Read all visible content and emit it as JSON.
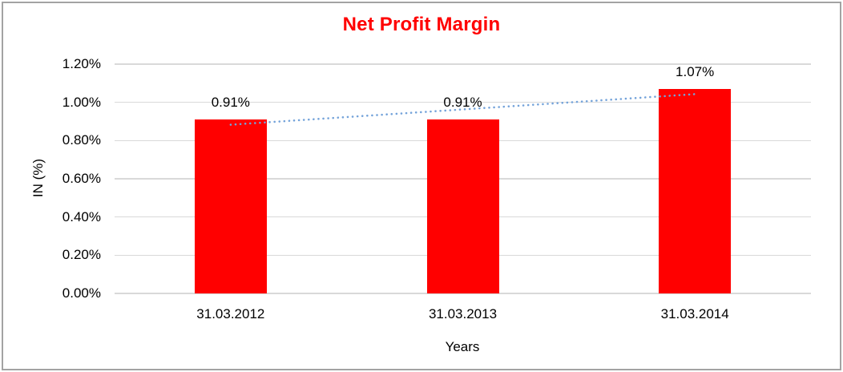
{
  "chart_data": {
    "type": "bar",
    "title": "Net Profit Margin",
    "xlabel": "Years",
    "ylabel": "IN (%)",
    "categories": [
      "31.03.2012",
      "31.03.2013",
      "31.03.2014"
    ],
    "values": [
      0.91,
      0.91,
      1.07
    ],
    "data_labels": [
      "0.91%",
      "0.91%",
      "1.07%"
    ],
    "ylim": [
      0,
      1.2
    ],
    "yticks": [
      {
        "value": 0.0,
        "label": "0.00%"
      },
      {
        "value": 0.2,
        "label": "0.20%"
      },
      {
        "value": 0.4,
        "label": "0.40%"
      },
      {
        "value": 0.6,
        "label": "0.60%"
      },
      {
        "value": 0.8,
        "label": "0.80%"
      },
      {
        "value": 1.0,
        "label": "1.00%"
      },
      {
        "value": 1.2,
        "label": "1.20%"
      }
    ],
    "grid": true,
    "legend": "none",
    "trendline": {
      "type": "linear",
      "style": "dotted",
      "start_value": 0.883,
      "end_value": 1.043
    },
    "colors": {
      "bar": "#FF0000",
      "title": "#FF0000",
      "trendline": "#74A3DA",
      "gridline": "#D9D9D9",
      "text": "#000000",
      "border": "#A3A3A3"
    }
  }
}
